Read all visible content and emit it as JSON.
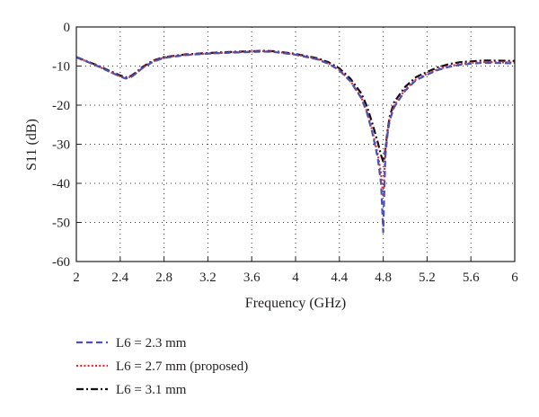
{
  "chart_data": {
    "type": "line",
    "title": "",
    "xlabel": "Frequency (GHz)",
    "ylabel": "S11 (dB)",
    "xlim": [
      2,
      6
    ],
    "ylim": [
      -60,
      0
    ],
    "xticks": [
      2,
      2.4,
      2.8,
      3.2,
      3.6,
      4,
      4.4,
      4.8,
      5.2,
      5.6,
      6
    ],
    "xtick_labels": [
      "2",
      "2.4",
      "2.8",
      "3.2",
      "3.6",
      "4",
      "4.4",
      "4.8",
      "5.2",
      "5.6",
      "6"
    ],
    "yticks": [
      0,
      -10,
      -20,
      -30,
      -40,
      -50,
      -60
    ],
    "ytick_labels": [
      "0",
      "-10",
      "-20",
      "-30",
      "-40",
      "-50",
      "-60"
    ],
    "grid": true,
    "legend_position": "bottom-left",
    "series": [
      {
        "name": "L6 = 2.3 mm",
        "color": "#4a52b8",
        "style": "dashed",
        "x": [
          2.0,
          2.1,
          2.2,
          2.3,
          2.4,
          2.45,
          2.5,
          2.55,
          2.6,
          2.7,
          2.8,
          3.0,
          3.2,
          3.4,
          3.6,
          3.7,
          3.8,
          4.0,
          4.2,
          4.3,
          4.4,
          4.5,
          4.6,
          4.65,
          4.7,
          4.75,
          4.78,
          4.8,
          4.81,
          4.82,
          4.84,
          4.86,
          4.9,
          5.0,
          5.1,
          5.2,
          5.3,
          5.4,
          5.5,
          5.6,
          5.7,
          5.8,
          6.0
        ],
        "y": [
          -7.8,
          -8.9,
          -10.1,
          -11.4,
          -12.7,
          -13.2,
          -12.8,
          -11.8,
          -10.6,
          -8.9,
          -7.9,
          -7.2,
          -6.8,
          -6.6,
          -6.4,
          -6.3,
          -6.4,
          -7.1,
          -8.3,
          -9.4,
          -11.1,
          -13.9,
          -18.2,
          -21.8,
          -27.0,
          -33.5,
          -40.0,
          -52.5,
          -42.0,
          -33.0,
          -27.3,
          -23.8,
          -20.5,
          -16.3,
          -13.6,
          -12.2,
          -11.0,
          -10.2,
          -9.7,
          -9.4,
          -9.2,
          -9.2,
          -9.3
        ]
      },
      {
        "name": "L6 = 2.7 mm (proposed)",
        "color": "#e8262c",
        "style": "dotted",
        "x": [
          2.0,
          2.1,
          2.2,
          2.3,
          2.4,
          2.45,
          2.5,
          2.55,
          2.6,
          2.7,
          2.8,
          3.0,
          3.2,
          3.4,
          3.6,
          3.7,
          3.8,
          4.0,
          4.2,
          4.3,
          4.4,
          4.5,
          4.6,
          4.65,
          4.7,
          4.75,
          4.78,
          4.8,
          4.81,
          4.82,
          4.84,
          4.86,
          4.9,
          5.0,
          5.1,
          5.2,
          5.3,
          5.4,
          5.5,
          5.6,
          5.7,
          5.8,
          6.0
        ],
        "y": [
          -7.8,
          -8.9,
          -10.1,
          -11.4,
          -12.6,
          -13.1,
          -12.7,
          -11.7,
          -10.5,
          -8.8,
          -7.8,
          -7.1,
          -6.8,
          -6.5,
          -6.3,
          -6.2,
          -6.3,
          -7.0,
          -8.2,
          -9.3,
          -11.0,
          -13.8,
          -18.0,
          -21.5,
          -26.5,
          -32.5,
          -37.5,
          -43.5,
          -38.0,
          -31.5,
          -26.6,
          -23.4,
          -20.1,
          -16.0,
          -13.4,
          -12.0,
          -10.8,
          -10.0,
          -9.5,
          -9.2,
          -9.0,
          -9.0,
          -9.1
        ]
      },
      {
        "name": "L6 = 3.1 mm",
        "color": "#111111",
        "style": "dashdot",
        "x": [
          2.0,
          2.1,
          2.2,
          2.3,
          2.4,
          2.45,
          2.5,
          2.55,
          2.6,
          2.7,
          2.8,
          3.0,
          3.2,
          3.4,
          3.6,
          3.7,
          3.8,
          4.0,
          4.2,
          4.3,
          4.4,
          4.5,
          4.6,
          4.65,
          4.7,
          4.75,
          4.78,
          4.8,
          4.81,
          4.82,
          4.84,
          4.86,
          4.9,
          5.0,
          5.1,
          5.2,
          5.3,
          5.4,
          5.5,
          5.6,
          5.7,
          5.8,
          6.0
        ],
        "y": [
          -7.7,
          -8.8,
          -9.9,
          -11.2,
          -12.4,
          -12.9,
          -12.5,
          -11.5,
          -10.3,
          -8.6,
          -7.7,
          -7.0,
          -6.7,
          -6.4,
          -6.2,
          -6.1,
          -6.2,
          -6.9,
          -8.0,
          -9.0,
          -10.6,
          -13.2,
          -17.0,
          -20.2,
          -24.6,
          -29.5,
          -32.8,
          -34.5,
          -33.6,
          -31.2,
          -26.4,
          -22.8,
          -19.2,
          -15.3,
          -12.8,
          -11.5,
          -10.3,
          -9.5,
          -9.0,
          -8.8,
          -8.6,
          -8.6,
          -8.7
        ]
      }
    ]
  }
}
